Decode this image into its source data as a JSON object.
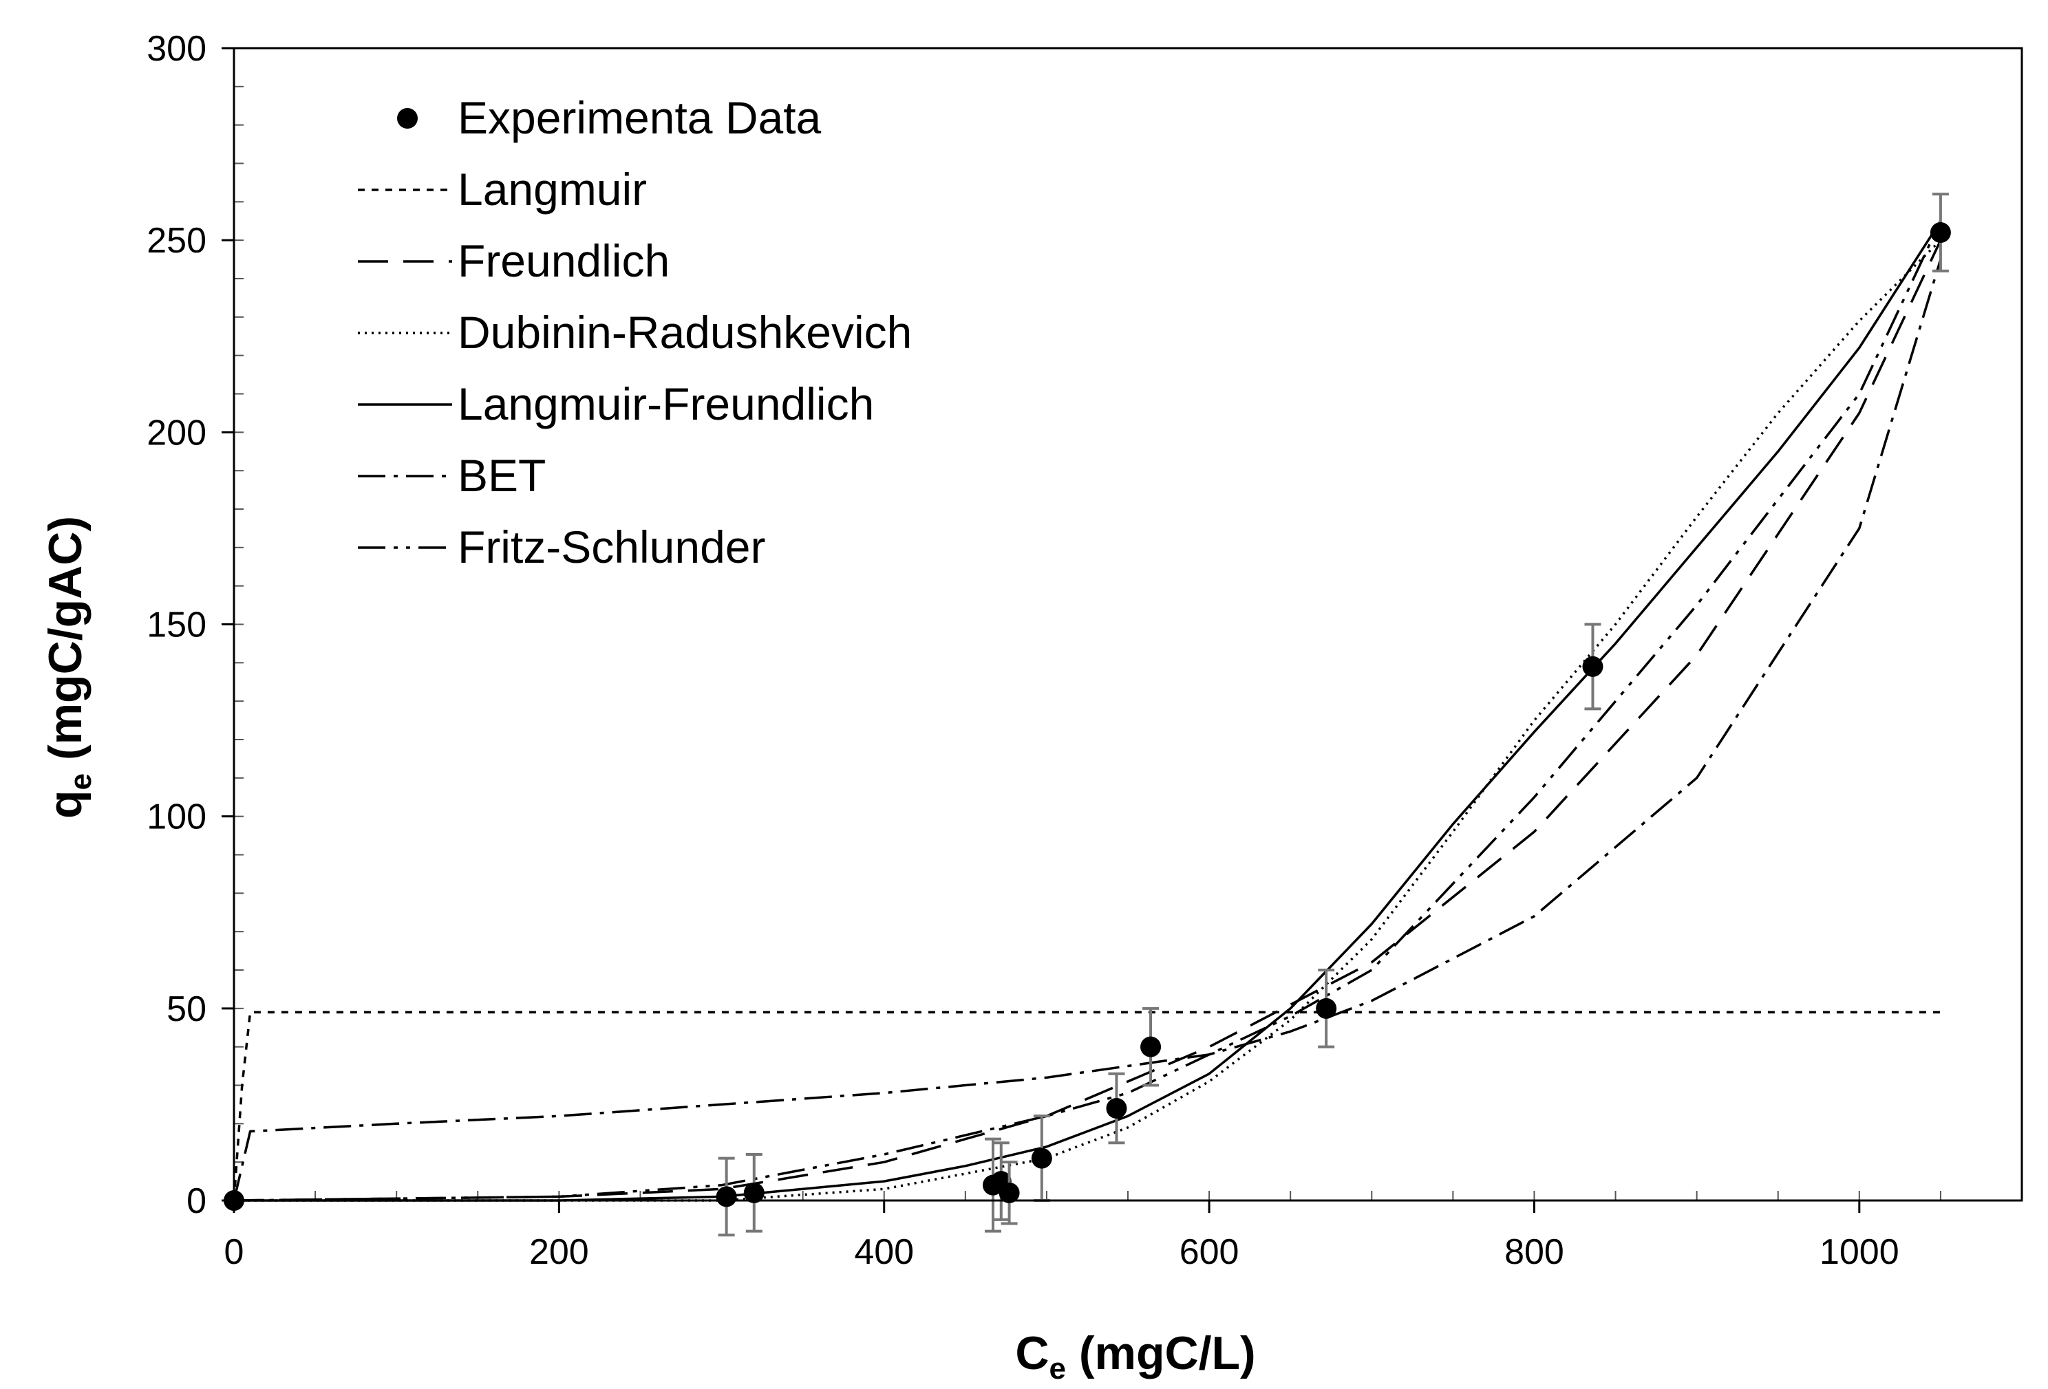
{
  "chart_data": {
    "type": "scatter",
    "title": "",
    "xlabel": {
      "main": "C",
      "sub": "e",
      "unit": " (mgC/L)"
    },
    "ylabel": {
      "main": "q",
      "sub": "e",
      "unit": " (mgC/gAC)"
    },
    "xlim": [
      0,
      1100
    ],
    "ylim": [
      0,
      300
    ],
    "xticks": [
      0,
      200,
      400,
      600,
      800,
      1000
    ],
    "yticks": [
      0,
      50,
      100,
      150,
      200,
      250,
      300
    ],
    "grid": false,
    "legend_position": "top-left",
    "series": [
      {
        "name": "Experimenta Data",
        "kind": "points",
        "x": [
          0,
          303,
          320,
          467,
          472,
          477,
          497,
          543,
          564,
          672,
          836,
          1050
        ],
        "y": [
          0,
          1,
          2,
          4,
          5,
          2,
          11,
          24,
          40,
          50,
          139,
          252
        ],
        "err": [
          0,
          10,
          10,
          12,
          10,
          8,
          11,
          9,
          10,
          10,
          11,
          10
        ]
      },
      {
        "name": "Langmuir",
        "kind": "line",
        "dash": "10,10",
        "x": [
          0,
          5,
          10,
          1050
        ],
        "y": [
          0,
          30,
          49,
          49
        ]
      },
      {
        "name": "Freundlich",
        "kind": "line",
        "dash": "44,22",
        "x": [
          0,
          200,
          300,
          400,
          500,
          600,
          650,
          700,
          800,
          900,
          1000,
          1050
        ],
        "y": [
          0,
          1,
          3,
          10,
          22,
          40,
          51,
          62,
          96,
          142,
          205,
          250
        ]
      },
      {
        "name": "Dubinin-Radushkevich",
        "kind": "line",
        "dash": "3,7",
        "x": [
          0,
          200,
          300,
          400,
          500,
          550,
          600,
          650,
          700,
          750,
          800,
          850,
          900,
          950,
          1000,
          1050
        ],
        "y": [
          0,
          0,
          0,
          3,
          11,
          19,
          31,
          47,
          68,
          96,
          125,
          150,
          178,
          205,
          229,
          250
        ]
      },
      {
        "name": "Langmuir-Freundlich",
        "kind": "line",
        "dash": "",
        "x": [
          0,
          200,
          300,
          400,
          450,
          500,
          550,
          600,
          650,
          700,
          750,
          800,
          850,
          900,
          950,
          1000,
          1050
        ],
        "y": [
          0,
          0,
          1,
          5,
          9,
          14,
          22,
          33,
          50,
          72,
          98,
          122,
          145,
          170,
          195,
          222,
          255
        ]
      },
      {
        "name": "BET",
        "kind": "line",
        "dash": "40,12,6,12",
        "x": [
          0,
          10,
          100,
          200,
          300,
          400,
          500,
          600,
          650,
          700,
          800,
          900,
          1000,
          1050
        ],
        "y": [
          0,
          18,
          20,
          22,
          25,
          28,
          32,
          38,
          44,
          52,
          74,
          110,
          175,
          245
        ]
      },
      {
        "name": "Fritz-Schlunder",
        "kind": "line",
        "dash": "40,12,6,12,6,12",
        "x": [
          0,
          200,
          300,
          400,
          500,
          550,
          600,
          650,
          700,
          800,
          900,
          1000,
          1050
        ],
        "y": [
          0,
          1,
          4,
          12,
          22,
          28,
          38,
          48,
          60,
          105,
          155,
          210,
          255
        ]
      }
    ]
  }
}
